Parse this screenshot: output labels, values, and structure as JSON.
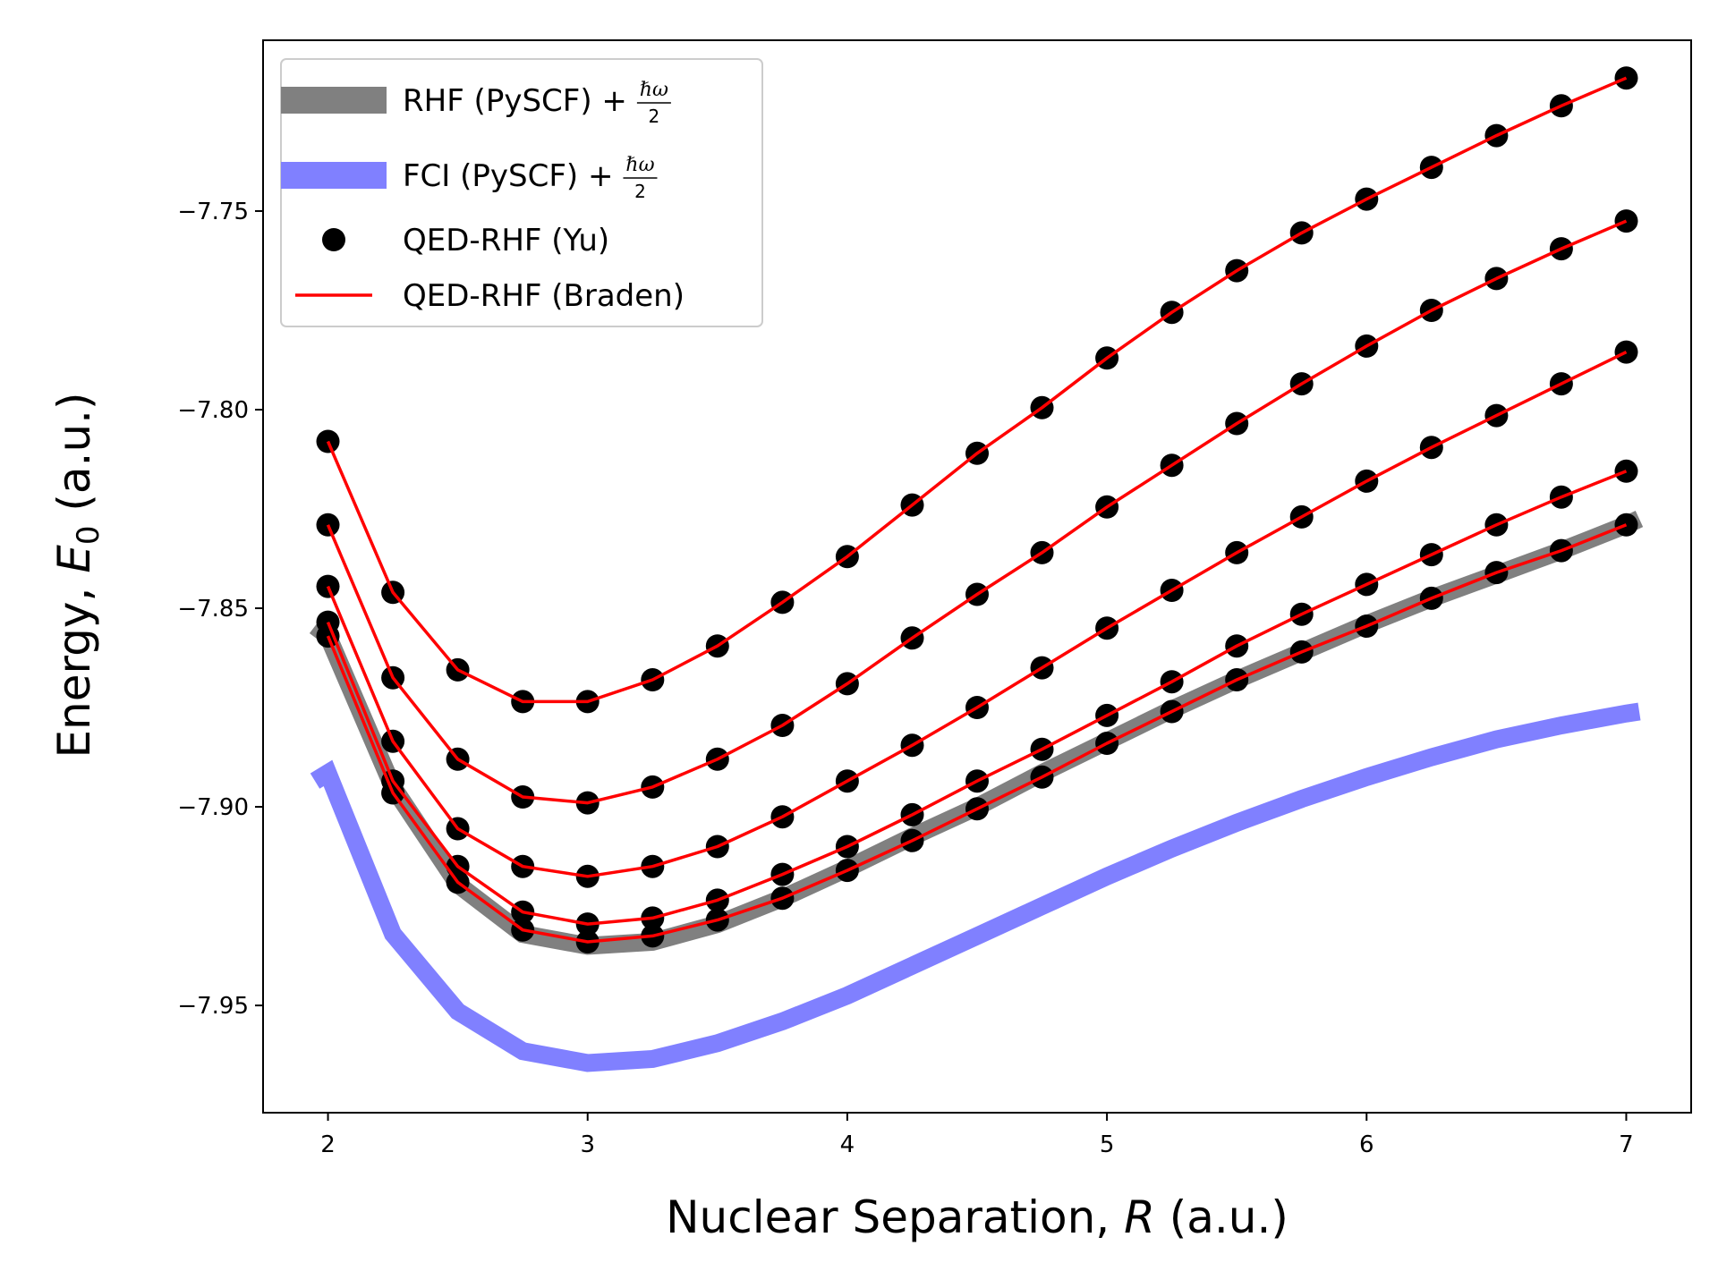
{
  "chart_data": {
    "type": "line",
    "xlabel": "Nuclear Separation, R (a.u.)",
    "ylabel": "Energy, E0 (a.u.)",
    "xlim": [
      1.75,
      7.25
    ],
    "ylim": [
      -7.977,
      -7.707
    ],
    "xticks": [
      2,
      3,
      4,
      5,
      6,
      7
    ],
    "xtick_labels": [
      "2",
      "3",
      "4",
      "5",
      "6",
      "7"
    ],
    "yticks": [
      -7.75,
      -7.8,
      -7.85,
      -7.9,
      -7.95
    ],
    "ytick_labels": [
      "−7.75",
      "−7.80",
      "−7.85",
      "−7.90",
      "−7.95"
    ],
    "grid": false,
    "legend_position": "upper-left",
    "colors": {
      "rhf": "#808080",
      "fci": "#8080ff",
      "yu": "#000000",
      "braden": "#ff0000"
    },
    "legend": [
      {
        "label": "RHF (PySCF) + ℏω/2",
        "text": "RHF (PySCF) +",
        "frac_num": "ℏω",
        "frac_den": "2",
        "style": "thick-line",
        "color": "#808080"
      },
      {
        "label": "FCI (PySCF) + ℏω/2",
        "text": "FCI (PySCF) +",
        "frac_num": "ℏω",
        "frac_den": "2",
        "style": "thick-line",
        "color": "#8080ff"
      },
      {
        "label": "QED-RHF (Yu)",
        "text": "QED-RHF (Yu)",
        "style": "marker",
        "color": "#000000"
      },
      {
        "label": "QED-RHF (Braden)",
        "text": "QED-RHF (Braden)",
        "style": "line",
        "color": "#ff0000"
      }
    ],
    "x": [
      2.0,
      2.25,
      2.5,
      2.75,
      3.0,
      3.25,
      3.5,
      3.75,
      4.0,
      4.25,
      4.5,
      4.75,
      5.0,
      5.25,
      5.5,
      5.75,
      6.0,
      6.25,
      6.5,
      6.75,
      7.0
    ],
    "rhf": {
      "name": "RHF (PySCF) + ℏω/2",
      "x": [
        1.95,
        2.0,
        2.25,
        2.5,
        2.75,
        3.0,
        3.25,
        3.5,
        3.75,
        4.0,
        4.25,
        4.5,
        4.75,
        5.0,
        5.25,
        5.5,
        5.75,
        6.0,
        6.25,
        6.5,
        6.75,
        7.0,
        7.05
      ],
      "values": [
        -7.8545,
        -7.857,
        -7.895,
        -7.9195,
        -7.932,
        -7.935,
        -7.934,
        -7.9295,
        -7.923,
        -7.9155,
        -7.9075,
        -7.9,
        -7.8915,
        -7.8835,
        -7.8755,
        -7.868,
        -7.861,
        -7.854,
        -7.8475,
        -7.8415,
        -7.8355,
        -7.829,
        -7.8275
      ]
    },
    "fci": {
      "name": "FCI (PySCF) + ℏω/2",
      "x": [
        1.95,
        2.0,
        2.25,
        2.5,
        2.75,
        3.0,
        3.25,
        3.5,
        3.75,
        4.0,
        4.25,
        4.5,
        4.75,
        5.0,
        5.25,
        5.5,
        5.75,
        6.0,
        6.25,
        6.5,
        6.75,
        7.0,
        7.05
      ],
      "values": [
        -7.8935,
        -7.8915,
        -7.932,
        -7.9515,
        -7.9615,
        -7.9645,
        -7.9635,
        -7.9595,
        -7.954,
        -7.9475,
        -7.94,
        -7.9325,
        -7.925,
        -7.9175,
        -7.9105,
        -7.904,
        -7.898,
        -7.8925,
        -7.8875,
        -7.883,
        -7.8795,
        -7.8765,
        -7.876
      ]
    },
    "series": [
      {
        "values": [
          -7.808,
          -7.846,
          -7.8655,
          -7.8735,
          -7.8735,
          -7.868,
          -7.8595,
          -7.8485,
          -7.837,
          -7.824,
          -7.811,
          -7.7995,
          -7.787,
          -7.7755,
          -7.765,
          -7.7555,
          -7.747,
          -7.739,
          -7.731,
          -7.7235,
          -7.7165
        ]
      },
      {
        "values": [
          -7.829,
          -7.8675,
          -7.888,
          -7.8975,
          -7.899,
          -7.895,
          -7.888,
          -7.8795,
          -7.869,
          -7.8575,
          -7.8465,
          -7.836,
          -7.8245,
          -7.814,
          -7.8035,
          -7.7935,
          -7.784,
          -7.775,
          -7.767,
          -7.7595,
          -7.7525
        ]
      },
      {
        "values": [
          -7.8445,
          -7.8835,
          -7.9055,
          -7.915,
          -7.9175,
          -7.915,
          -7.91,
          -7.9025,
          -7.8935,
          -7.8845,
          -7.875,
          -7.865,
          -7.855,
          -7.8455,
          -7.836,
          -7.827,
          -7.818,
          -7.8095,
          -7.8015,
          -7.7935,
          -7.7855
        ]
      },
      {
        "values": [
          -7.8535,
          -7.8935,
          -7.915,
          -7.9265,
          -7.9295,
          -7.928,
          -7.9235,
          -7.917,
          -7.91,
          -7.902,
          -7.8935,
          -7.8855,
          -7.877,
          -7.8685,
          -7.8595,
          -7.8515,
          -7.844,
          -7.8365,
          -7.829,
          -7.822,
          -7.8155
        ]
      },
      {
        "values": [
          -7.857,
          -7.8965,
          -7.919,
          -7.931,
          -7.934,
          -7.9325,
          -7.9285,
          -7.923,
          -7.916,
          -7.9085,
          -7.9005,
          -7.8925,
          -7.884,
          -7.876,
          -7.868,
          -7.861,
          -7.8545,
          -7.8475,
          -7.841,
          -7.8355,
          -7.829
        ]
      }
    ]
  }
}
